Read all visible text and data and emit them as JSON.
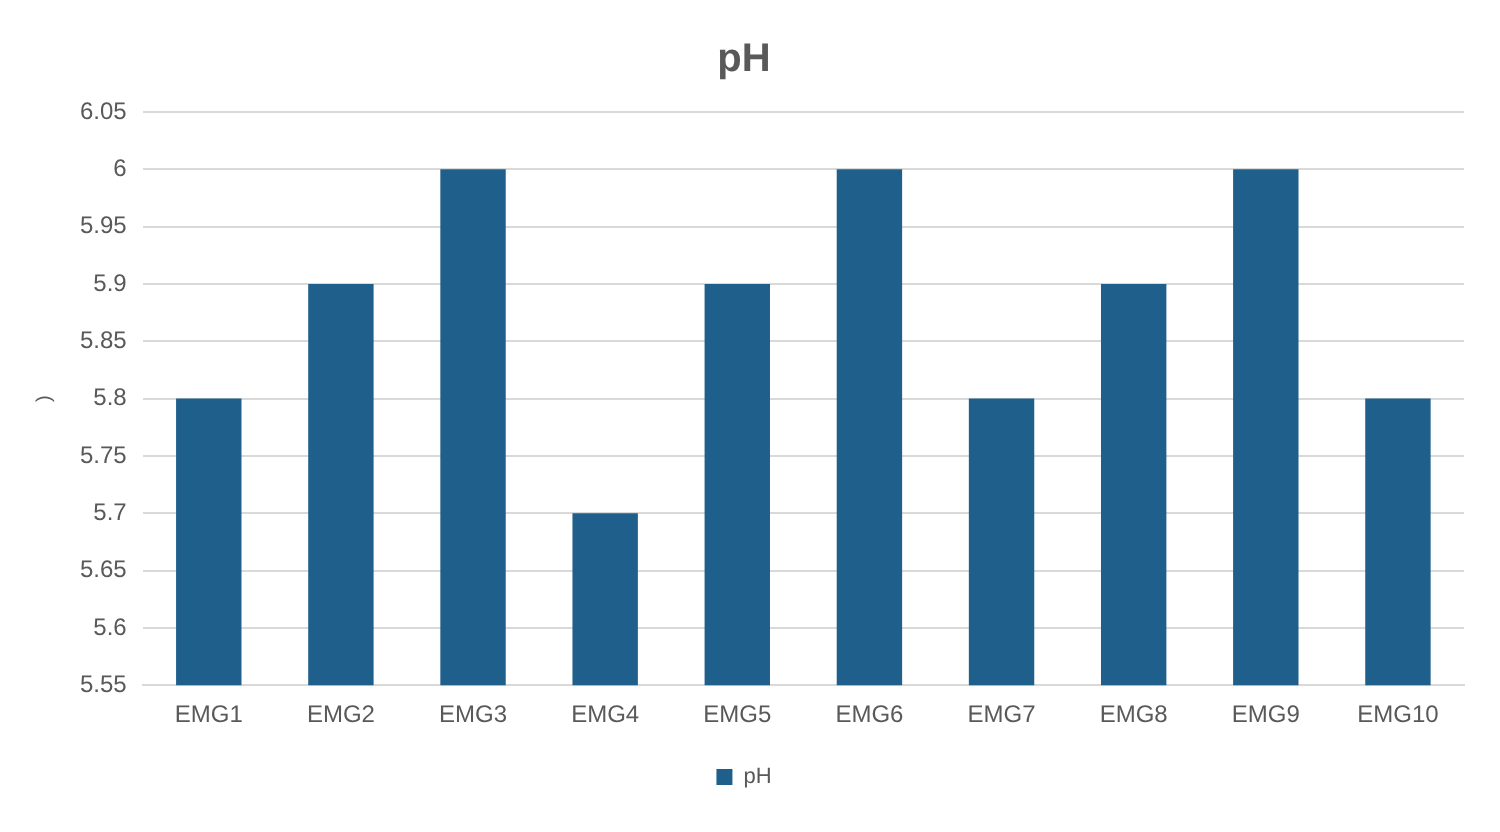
{
  "chart_data": {
    "type": "bar",
    "title": "pH",
    "ylabel": ")",
    "categories": [
      "EMG1",
      "EMG2",
      "EMG3",
      "EMG4",
      "EMG5",
      "EMG6",
      "EMG7",
      "EMG8",
      "EMG9",
      "EMG10"
    ],
    "series": [
      {
        "name": "pH",
        "color": "#1f5f8b",
        "values": [
          5.8,
          5.9,
          6,
          5.7,
          5.9,
          6,
          5.8,
          5.9,
          6,
          5.8
        ]
      }
    ],
    "ylim": [
      5.55,
      6.05
    ],
    "yticks": [
      5.55,
      5.6,
      5.65,
      5.7,
      5.75,
      5.8,
      5.85,
      5.9,
      5.95,
      6,
      6.05
    ],
    "grid": "y",
    "legend": "bottom"
  }
}
